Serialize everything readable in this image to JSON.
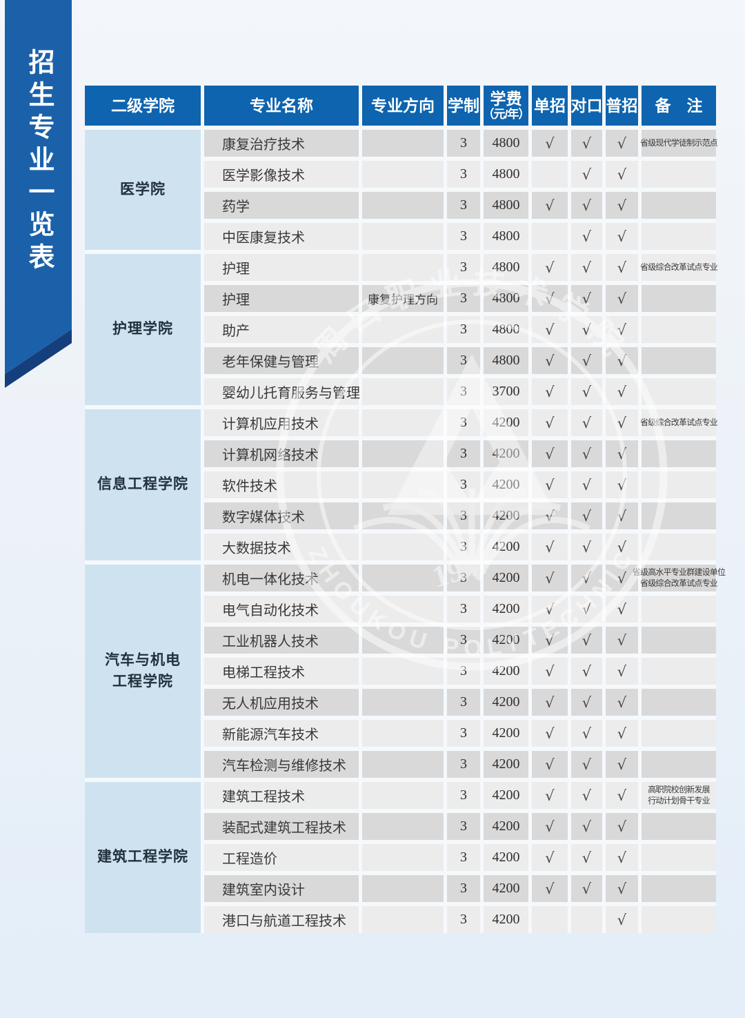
{
  "page": {
    "banner_title": "招生专业一览表"
  },
  "colors": {
    "header_blue": "#0e64ae",
    "ribbon_blue": "#1b61aa",
    "ribbon_fold_navy": "#153e7c",
    "college_cell_blue": "#cfe2f0",
    "stripe_dark": "#d9d9d9",
    "stripe_light": "#ececec"
  },
  "table": {
    "check_symbol": "√",
    "headers": [
      {
        "key": "college",
        "label": "二级学院"
      },
      {
        "key": "major",
        "label": "专业名称"
      },
      {
        "key": "direction",
        "label": "专业方向"
      },
      {
        "key": "years",
        "label": "学制"
      },
      {
        "key": "tuition",
        "label": "学费",
        "sub": "（元/年）"
      },
      {
        "key": "danzhao",
        "label": "单招"
      },
      {
        "key": "duikou",
        "label": "对口"
      },
      {
        "key": "puzhao",
        "label": "普招"
      },
      {
        "key": "remark",
        "label": "备　注"
      }
    ],
    "groups": [
      {
        "college_lines": [
          "医学院"
        ],
        "rows": [
          {
            "major": "康复治疗技术",
            "direction": "",
            "years": "3",
            "tuition": "4800",
            "danzhao": true,
            "duikou": true,
            "puzhao": true,
            "remark_lines": [
              "省级现代学徒制示范点"
            ],
            "shade": "dark"
          },
          {
            "major": "医学影像技术",
            "direction": "",
            "years": "3",
            "tuition": "4800",
            "danzhao": false,
            "duikou": true,
            "puzhao": true,
            "remark_lines": [],
            "shade": "light"
          },
          {
            "major": "药学",
            "direction": "",
            "years": "3",
            "tuition": "4800",
            "danzhao": true,
            "duikou": true,
            "puzhao": true,
            "remark_lines": [],
            "shade": "dark"
          },
          {
            "major": "中医康复技术",
            "direction": "",
            "years": "3",
            "tuition": "4800",
            "danzhao": false,
            "duikou": true,
            "puzhao": true,
            "remark_lines": [],
            "shade": "light"
          }
        ]
      },
      {
        "college_lines": [
          "护理学院"
        ],
        "rows": [
          {
            "major": "护理",
            "direction": "",
            "years": "3",
            "tuition": "4800",
            "danzhao": true,
            "duikou": true,
            "puzhao": true,
            "remark_lines": [
              "省级综合改革试点专业"
            ],
            "shade": "light"
          },
          {
            "major": "护理",
            "direction": "康复护理方向",
            "years": "3",
            "tuition": "4800",
            "danzhao": true,
            "duikou": true,
            "puzhao": true,
            "remark_lines": [],
            "shade": "dark"
          },
          {
            "major": "助产",
            "direction": "",
            "years": "3",
            "tuition": "4800",
            "danzhao": true,
            "duikou": true,
            "puzhao": true,
            "remark_lines": [],
            "shade": "light"
          },
          {
            "major": "老年保健与管理",
            "direction": "",
            "years": "3",
            "tuition": "4800",
            "danzhao": true,
            "duikou": true,
            "puzhao": true,
            "remark_lines": [],
            "shade": "dark"
          },
          {
            "major": "婴幼儿托育服务与管理",
            "direction": "",
            "years": "3",
            "tuition": "3700",
            "danzhao": true,
            "duikou": true,
            "puzhao": true,
            "remark_lines": [],
            "shade": "light"
          }
        ]
      },
      {
        "college_lines": [
          "信息工程学院"
        ],
        "rows": [
          {
            "major": "计算机应用技术",
            "direction": "",
            "years": "3",
            "tuition": "4200",
            "danzhao": true,
            "duikou": true,
            "puzhao": true,
            "remark_lines": [
              "省级综合改革试点专业"
            ],
            "shade": "light"
          },
          {
            "major": "计算机网络技术",
            "direction": "",
            "years": "3",
            "tuition": "4200",
            "danzhao": true,
            "duikou": true,
            "puzhao": true,
            "remark_lines": [],
            "shade": "dark"
          },
          {
            "major": "软件技术",
            "direction": "",
            "years": "3",
            "tuition": "4200",
            "danzhao": true,
            "duikou": true,
            "puzhao": true,
            "remark_lines": [],
            "shade": "light"
          },
          {
            "major": "数字媒体技术",
            "direction": "",
            "years": "3",
            "tuition": "4200",
            "danzhao": true,
            "duikou": true,
            "puzhao": true,
            "remark_lines": [],
            "shade": "dark"
          },
          {
            "major": "大数据技术",
            "direction": "",
            "years": "3",
            "tuition": "4200",
            "danzhao": true,
            "duikou": true,
            "puzhao": true,
            "remark_lines": [],
            "shade": "light"
          }
        ]
      },
      {
        "college_lines": [
          "汽车与机电",
          "工程学院"
        ],
        "rows": [
          {
            "major": "机电一体化技术",
            "direction": "",
            "years": "3",
            "tuition": "4200",
            "danzhao": true,
            "duikou": true,
            "puzhao": true,
            "remark_lines": [
              "省级高水平专业群建设单位",
              "省级综合改革试点专业"
            ],
            "shade": "dark"
          },
          {
            "major": "电气自动化技术",
            "direction": "",
            "years": "3",
            "tuition": "4200",
            "danzhao": true,
            "duikou": true,
            "puzhao": true,
            "remark_lines": [],
            "shade": "light"
          },
          {
            "major": "工业机器人技术",
            "direction": "",
            "years": "3",
            "tuition": "4200",
            "danzhao": true,
            "duikou": true,
            "puzhao": true,
            "remark_lines": [],
            "shade": "dark"
          },
          {
            "major": "电梯工程技术",
            "direction": "",
            "years": "3",
            "tuition": "4200",
            "danzhao": true,
            "duikou": true,
            "puzhao": true,
            "remark_lines": [],
            "shade": "light"
          },
          {
            "major": "无人机应用技术",
            "direction": "",
            "years": "3",
            "tuition": "4200",
            "danzhao": true,
            "duikou": true,
            "puzhao": true,
            "remark_lines": [],
            "shade": "dark"
          },
          {
            "major": "新能源汽车技术",
            "direction": "",
            "years": "3",
            "tuition": "4200",
            "danzhao": true,
            "duikou": true,
            "puzhao": true,
            "remark_lines": [],
            "shade": "light"
          },
          {
            "major": "汽车检测与维修技术",
            "direction": "",
            "years": "3",
            "tuition": "4200",
            "danzhao": true,
            "duikou": true,
            "puzhao": true,
            "remark_lines": [],
            "shade": "dark"
          }
        ]
      },
      {
        "college_lines": [
          "建筑工程学院"
        ],
        "rows": [
          {
            "major": "建筑工程技术",
            "direction": "",
            "years": "3",
            "tuition": "4200",
            "danzhao": true,
            "duikou": true,
            "puzhao": true,
            "remark_lines": [
              "高职院校创新发展",
              "行动计划骨干专业"
            ],
            "shade": "light"
          },
          {
            "major": "装配式建筑工程技术",
            "direction": "",
            "years": "3",
            "tuition": "4200",
            "danzhao": true,
            "duikou": true,
            "puzhao": true,
            "remark_lines": [],
            "shade": "dark"
          },
          {
            "major": "工程造价",
            "direction": "",
            "years": "3",
            "tuition": "4200",
            "danzhao": true,
            "duikou": true,
            "puzhao": true,
            "remark_lines": [],
            "shade": "light"
          },
          {
            "major": "建筑室内设计",
            "direction": "",
            "years": "3",
            "tuition": "4200",
            "danzhao": true,
            "duikou": true,
            "puzhao": true,
            "remark_lines": [],
            "shade": "dark"
          },
          {
            "major": "港口与航道工程技术",
            "direction": "",
            "years": "3",
            "tuition": "4200",
            "danzhao": false,
            "duikou": false,
            "puzhao": true,
            "remark_lines": [],
            "shade": "light"
          }
        ]
      }
    ]
  },
  "watermark": {
    "top_text": "周口职业技术学院",
    "bottom_text": "ZHOUKOU POLYTECHNIC",
    "year": "1947"
  }
}
